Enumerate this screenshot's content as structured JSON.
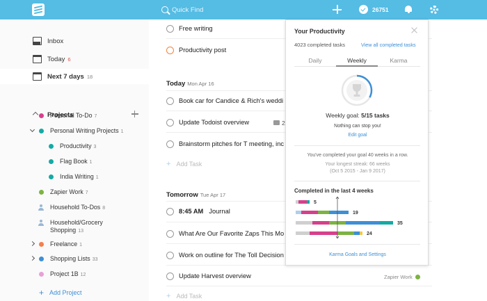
{
  "header": {
    "search_placeholder": "Quick Find",
    "karma_points": "26751"
  },
  "sidebar": {
    "nav": [
      {
        "label": "Inbox",
        "count": ""
      },
      {
        "label": "Today",
        "count": "6"
      },
      {
        "label": "Next 7 days",
        "count": "18"
      }
    ],
    "projects_label": "Projects",
    "projects": [
      {
        "name": "Personal To-Do",
        "count": "7",
        "color": "#d6408b"
      },
      {
        "name": "Personal Writing Projects",
        "count": "1",
        "color": "#14aaa5"
      },
      {
        "name": "Productivity",
        "count": "3",
        "color": "#14aaa5"
      },
      {
        "name": "Flag Book",
        "count": "1",
        "color": "#14aaa5"
      },
      {
        "name": "India Writing",
        "count": "1",
        "color": "#14aaa5"
      },
      {
        "name": "Zapier Work",
        "count": "7",
        "color": "#7cb342"
      },
      {
        "name": "Household To-Dos",
        "count": "8",
        "icon": "person-icon"
      },
      {
        "name": "Household/Grocery",
        "name2": "Shopping",
        "count": "13",
        "icon": "person-icon"
      },
      {
        "name": "Freelance",
        "count": "1",
        "color": "#f57f4d"
      },
      {
        "name": "Shopping Lists",
        "count": "33",
        "color": "#3d8fd6"
      },
      {
        "name": "Project 1B",
        "count": "12",
        "color": "#e8a0d8"
      }
    ],
    "add_project": "Add Project"
  },
  "main": {
    "top_tasks": [
      {
        "title": "Free writing"
      },
      {
        "title": "Productivity post"
      }
    ],
    "today": {
      "label": "Today",
      "date": "Mon Apr 16",
      "tasks": [
        {
          "title": "Book car for Candice & Rich's weddi"
        },
        {
          "title": "Update Todoist overview",
          "comments": "2"
        },
        {
          "title": "Brainstorm pitches for T meeting, inc"
        }
      ]
    },
    "tomorrow": {
      "label": "Tomorrow",
      "date": "Tue Apr 17",
      "tasks": [
        {
          "time": "8:45 AM",
          "title": "Journal"
        },
        {
          "title": "What Are Our Favorite Zaps This Mo"
        },
        {
          "title": "Work on outline for The Toll Decision"
        },
        {
          "title": "Update Harvest overview",
          "project": "Zapier Work"
        }
      ]
    },
    "add_task": "Add Task"
  },
  "productivity": {
    "title": "Your Productivity",
    "completed_tasks": "4023 completed tasks",
    "view_all": "View all completed tasks",
    "tabs": [
      "Daily",
      "Weekly",
      "Karma"
    ],
    "active_tab": "Weekly",
    "weekly_goal_label": "Weekly goal:",
    "weekly_goal_value": "5/15 tasks",
    "goal_progress": 0.33,
    "stop_msg": "Nothing can stop you!",
    "edit_goal": "Edit goal",
    "streak_msg": "You've completed your goal 40 weeks in a row.",
    "longest_streak": "Your longest streak: 66 weeks",
    "streak_dates": "(Oct 5 2015 - Jan 9 2017)",
    "last4_title": "Completed in the last 4 weeks",
    "karma_link": "Karma Goals and Settings"
  },
  "chart_data": {
    "type": "bar",
    "orientation": "horizontal",
    "stacked": true,
    "goal_marker": 15,
    "weeks": [
      {
        "total": "5",
        "segments": [
          {
            "v": 1,
            "c": "#cfcfcf"
          },
          {
            "v": 3,
            "c": "#d6408b"
          },
          {
            "v": 1,
            "c": "#14aaa5"
          }
        ]
      },
      {
        "total": "19",
        "segments": [
          {
            "v": 2,
            "c": "#aecfe9"
          },
          {
            "v": 6,
            "c": "#d6408b"
          },
          {
            "v": 4,
            "c": "#7cb342"
          },
          {
            "v": 7,
            "c": "#3d8fd6"
          }
        ]
      },
      {
        "total": "35",
        "segments": [
          {
            "v": 6,
            "c": "#cfcfcf"
          },
          {
            "v": 6,
            "c": "#d6408b"
          },
          {
            "v": 6,
            "c": "#7cb342"
          },
          {
            "v": 12,
            "c": "#3d8fd6"
          },
          {
            "v": 5,
            "c": "#14aaa5"
          }
        ]
      },
      {
        "total": "24",
        "segments": [
          {
            "v": 5,
            "c": "#cfcfcf"
          },
          {
            "v": 10,
            "c": "#d6408b"
          },
          {
            "v": 6,
            "c": "#7cb342"
          },
          {
            "v": 2,
            "c": "#3d8fd6"
          },
          {
            "v": 1,
            "c": "#f2c94c"
          }
        ]
      }
    ]
  }
}
